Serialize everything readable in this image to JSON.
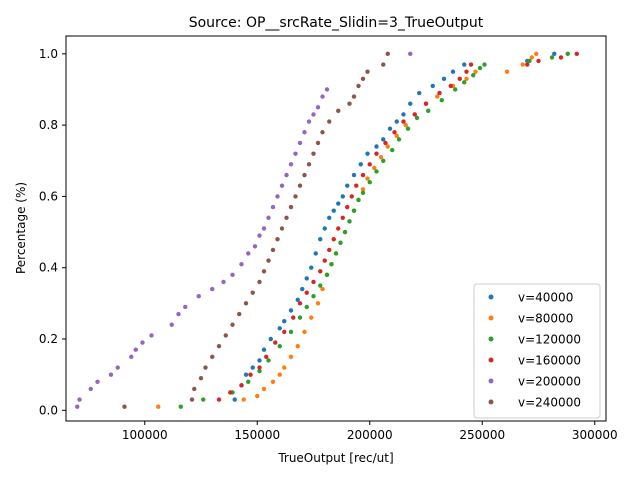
{
  "chart_data": {
    "type": "scatter",
    "title": "Source: OP__srcRate_Slidin=3_TrueOutput",
    "xlabel": "TrueOutput [rec/ut]",
    "ylabel": "Percentage (%)",
    "xlim": [
      65000,
      305000
    ],
    "ylim": [
      -0.03,
      1.05
    ],
    "xticks": [
      100000,
      150000,
      200000,
      250000,
      300000
    ],
    "xtick_labels": [
      "100000",
      "150000",
      "200000",
      "250000",
      "300000"
    ],
    "yticks": [
      0.0,
      0.2,
      0.4,
      0.6,
      0.8,
      1.0
    ],
    "ytick_labels": [
      "0.0",
      "0.2",
      "0.4",
      "0.6",
      "0.8",
      "1.0"
    ],
    "grid": false,
    "legend_position": "bottom-right",
    "series": [
      {
        "name": "v=40000",
        "color": "#1f77b4",
        "points": [
          [
            140000,
            0.03
          ],
          [
            143000,
            0.07
          ],
          [
            145000,
            0.1
          ],
          [
            148000,
            0.12
          ],
          [
            151000,
            0.14
          ],
          [
            153000,
            0.17
          ],
          [
            156000,
            0.2
          ],
          [
            160000,
            0.23
          ],
          [
            162000,
            0.25
          ],
          [
            165000,
            0.28
          ],
          [
            168000,
            0.31
          ],
          [
            170000,
            0.34
          ],
          [
            172000,
            0.37
          ],
          [
            174000,
            0.4
          ],
          [
            176000,
            0.44
          ],
          [
            178000,
            0.48
          ],
          [
            180000,
            0.51
          ],
          [
            182000,
            0.54
          ],
          [
            184000,
            0.56
          ],
          [
            186000,
            0.58
          ],
          [
            188000,
            0.6
          ],
          [
            190000,
            0.63
          ],
          [
            193000,
            0.66
          ],
          [
            196000,
            0.69
          ],
          [
            199000,
            0.72
          ],
          [
            203000,
            0.74
          ],
          [
            206000,
            0.76
          ],
          [
            209000,
            0.79
          ],
          [
            212000,
            0.81
          ],
          [
            215000,
            0.83
          ],
          [
            218000,
            0.86
          ],
          [
            222000,
            0.89
          ],
          [
            228000,
            0.91
          ],
          [
            233000,
            0.93
          ],
          [
            237000,
            0.95
          ],
          [
            242000,
            0.97
          ],
          [
            270000,
            0.98
          ],
          [
            282000,
            1.0
          ]
        ]
      },
      {
        "name": "v=80000",
        "color": "#ff7f0e",
        "points": [
          [
            106000,
            0.01
          ],
          [
            144000,
            0.03
          ],
          [
            150000,
            0.04
          ],
          [
            153000,
            0.06
          ],
          [
            157000,
            0.08
          ],
          [
            160000,
            0.1
          ],
          [
            162000,
            0.12
          ],
          [
            165000,
            0.15
          ],
          [
            168000,
            0.18
          ],
          [
            171000,
            0.22
          ],
          [
            174000,
            0.26
          ],
          [
            177000,
            0.3
          ],
          [
            179000,
            0.34
          ],
          [
            181000,
            0.38
          ],
          [
            183000,
            0.41
          ],
          [
            185000,
            0.44
          ],
          [
            187000,
            0.47
          ],
          [
            189000,
            0.5
          ],
          [
            191000,
            0.53
          ],
          [
            193000,
            0.56
          ],
          [
            195000,
            0.59
          ],
          [
            197000,
            0.62
          ],
          [
            199000,
            0.65
          ],
          [
            202000,
            0.68
          ],
          [
            205000,
            0.71
          ],
          [
            208000,
            0.74
          ],
          [
            212000,
            0.77
          ],
          [
            216000,
            0.8
          ],
          [
            220000,
            0.83
          ],
          [
            225000,
            0.86
          ],
          [
            230000,
            0.88
          ],
          [
            237000,
            0.91
          ],
          [
            243000,
            0.93
          ],
          [
            247000,
            0.95
          ],
          [
            261000,
            0.95
          ],
          [
            268000,
            0.97
          ],
          [
            272000,
            0.99
          ],
          [
            274000,
            1.0
          ]
        ]
      },
      {
        "name": "v=120000",
        "color": "#2ca02c",
        "points": [
          [
            116000,
            0.01
          ],
          [
            126000,
            0.03
          ],
          [
            139000,
            0.05
          ],
          [
            146000,
            0.08
          ],
          [
            151000,
            0.11
          ],
          [
            155000,
            0.14
          ],
          [
            160000,
            0.18
          ],
          [
            165000,
            0.22
          ],
          [
            169000,
            0.26
          ],
          [
            172000,
            0.29
          ],
          [
            175000,
            0.32
          ],
          [
            178000,
            0.35
          ],
          [
            181000,
            0.38
          ],
          [
            183000,
            0.41
          ],
          [
            185000,
            0.44
          ],
          [
            187000,
            0.47
          ],
          [
            189000,
            0.5
          ],
          [
            191000,
            0.53
          ],
          [
            193000,
            0.56
          ],
          [
            195000,
            0.59
          ],
          [
            197000,
            0.61
          ],
          [
            200000,
            0.64
          ],
          [
            203000,
            0.67
          ],
          [
            206000,
            0.7
          ],
          [
            210000,
            0.73
          ],
          [
            213000,
            0.76
          ],
          [
            217000,
            0.79
          ],
          [
            221000,
            0.82
          ],
          [
            226000,
            0.84
          ],
          [
            232000,
            0.87
          ],
          [
            238000,
            0.9
          ],
          [
            242000,
            0.92
          ],
          [
            246000,
            0.94
          ],
          [
            249000,
            0.96
          ],
          [
            251000,
            0.97
          ],
          [
            271000,
            0.98
          ],
          [
            281000,
            0.99
          ],
          [
            288000,
            1.0
          ]
        ]
      },
      {
        "name": "v=160000",
        "color": "#d62728",
        "points": [
          [
            133000,
            0.03
          ],
          [
            138000,
            0.05
          ],
          [
            143000,
            0.07
          ],
          [
            147000,
            0.1
          ],
          [
            151000,
            0.12
          ],
          [
            154000,
            0.15
          ],
          [
            158000,
            0.19
          ],
          [
            162000,
            0.22
          ],
          [
            166000,
            0.26
          ],
          [
            169000,
            0.3
          ],
          [
            172000,
            0.33
          ],
          [
            175000,
            0.36
          ],
          [
            178000,
            0.39
          ],
          [
            180000,
            0.42
          ],
          [
            182000,
            0.45
          ],
          [
            184000,
            0.48
          ],
          [
            186000,
            0.51
          ],
          [
            188000,
            0.54
          ],
          [
            190000,
            0.57
          ],
          [
            192000,
            0.6
          ],
          [
            194000,
            0.63
          ],
          [
            197000,
            0.66
          ],
          [
            200000,
            0.69
          ],
          [
            203000,
            0.72
          ],
          [
            207000,
            0.75
          ],
          [
            211000,
            0.78
          ],
          [
            215000,
            0.81
          ],
          [
            220000,
            0.83
          ],
          [
            225000,
            0.86
          ],
          [
            231000,
            0.89
          ],
          [
            236000,
            0.91
          ],
          [
            240000,
            0.93
          ],
          [
            243000,
            0.95
          ],
          [
            245000,
            0.97
          ],
          [
            270000,
            0.97
          ],
          [
            275000,
            0.98
          ],
          [
            285000,
            0.99
          ],
          [
            292000,
            1.0
          ]
        ]
      },
      {
        "name": "v=200000",
        "color": "#9467bd",
        "points": [
          [
            70000,
            0.01
          ],
          [
            71000,
            0.03
          ],
          [
            76000,
            0.06
          ],
          [
            79000,
            0.08
          ],
          [
            85000,
            0.1
          ],
          [
            88000,
            0.12
          ],
          [
            94000,
            0.15
          ],
          [
            96000,
            0.17
          ],
          [
            99000,
            0.19
          ],
          [
            103000,
            0.21
          ],
          [
            112000,
            0.24
          ],
          [
            115000,
            0.27
          ],
          [
            118000,
            0.29
          ],
          [
            124000,
            0.32
          ],
          [
            130000,
            0.34
          ],
          [
            135000,
            0.36
          ],
          [
            139000,
            0.38
          ],
          [
            143000,
            0.41
          ],
          [
            146000,
            0.44
          ],
          [
            149000,
            0.46
          ],
          [
            151000,
            0.49
          ],
          [
            153000,
            0.51
          ],
          [
            155000,
            0.54
          ],
          [
            157000,
            0.57
          ],
          [
            159000,
            0.6
          ],
          [
            161000,
            0.63
          ],
          [
            163000,
            0.66
          ],
          [
            165000,
            0.69
          ],
          [
            167000,
            0.72
          ],
          [
            169000,
            0.75
          ],
          [
            171000,
            0.78
          ],
          [
            173000,
            0.81
          ],
          [
            175000,
            0.83
          ],
          [
            177000,
            0.85
          ],
          [
            179000,
            0.88
          ],
          [
            181000,
            0.9
          ],
          [
            218000,
            1.0
          ]
        ]
      },
      {
        "name": "v=240000",
        "color": "#8c564b",
        "points": [
          [
            91000,
            0.01
          ],
          [
            121000,
            0.03
          ],
          [
            122000,
            0.06
          ],
          [
            125000,
            0.09
          ],
          [
            127000,
            0.12
          ],
          [
            130000,
            0.15
          ],
          [
            133000,
            0.18
          ],
          [
            136000,
            0.21
          ],
          [
            139000,
            0.24
          ],
          [
            142000,
            0.27
          ],
          [
            145000,
            0.3
          ],
          [
            148000,
            0.33
          ],
          [
            151000,
            0.36
          ],
          [
            153000,
            0.39
          ],
          [
            155000,
            0.42
          ],
          [
            157000,
            0.45
          ],
          [
            159000,
            0.48
          ],
          [
            161000,
            0.51
          ],
          [
            163000,
            0.54
          ],
          [
            165000,
            0.57
          ],
          [
            167000,
            0.6
          ],
          [
            169000,
            0.63
          ],
          [
            171000,
            0.66
          ],
          [
            173000,
            0.69
          ],
          [
            175000,
            0.72
          ],
          [
            177000,
            0.75
          ],
          [
            179000,
            0.78
          ],
          [
            182000,
            0.81
          ],
          [
            186000,
            0.84
          ],
          [
            191000,
            0.86
          ],
          [
            193000,
            0.88
          ],
          [
            195000,
            0.91
          ],
          [
            197000,
            0.93
          ],
          [
            199000,
            0.95
          ],
          [
            206000,
            0.97
          ],
          [
            208000,
            1.0
          ]
        ]
      }
    ]
  }
}
